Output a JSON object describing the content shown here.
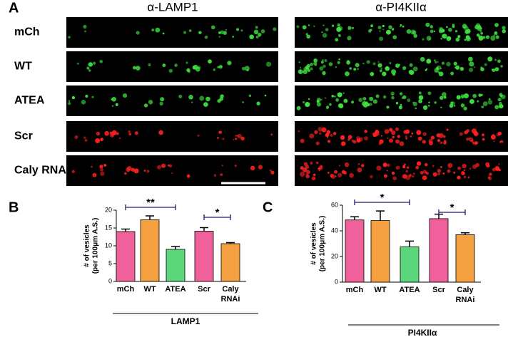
{
  "panel_labels": [
    "A",
    "B",
    "C"
  ],
  "column_titles": [
    "α-LAMP1",
    "α-PI4KIIα"
  ],
  "row_labels": [
    "mCh",
    "WT",
    "ATEA",
    "Scr",
    "Caly RNAi"
  ],
  "chart_data": [
    {
      "type": "bar",
      "y_label": [
        "# of vesicles",
        "(per 100μm A.S.)"
      ],
      "x_label": "LAMP1",
      "categories": [
        "mCh",
        "WT",
        "ATEA",
        "Scr",
        "Caly RNAi"
      ],
      "values": [
        14,
        17.3,
        9,
        14.1,
        10.6
      ],
      "errors": [
        0.7,
        1.1,
        0.8,
        1.0,
        0.3
      ],
      "colors": [
        "#f0609a",
        "#f5a040",
        "#5cd67a",
        "#f0609a",
        "#f5a040"
      ],
      "ylim": [
        0,
        20
      ],
      "yticks": [
        0,
        5,
        10,
        15,
        20
      ],
      "annotations": [
        {
          "text": "**",
          "between": [
            "mCh",
            "ATEA"
          ]
        },
        {
          "text": "*",
          "between": [
            "Scr",
            "Caly RNAi"
          ]
        }
      ]
    },
    {
      "type": "bar",
      "y_label": [
        "# of vesicles",
        "(per 100μm A.S.)"
      ],
      "x_label": "PI4KIIα",
      "categories": [
        "mCh",
        "WT",
        "ATEA",
        "Scr",
        "Caly RNAi"
      ],
      "values": [
        48.5,
        48,
        27.5,
        49.5,
        37
      ],
      "errors": [
        2.5,
        7.5,
        4.5,
        3.5,
        1.5
      ],
      "colors": [
        "#f0609a",
        "#f5a040",
        "#5cd67a",
        "#f0609a",
        "#f5a040"
      ],
      "ylim": [
        0,
        60
      ],
      "yticks": [
        0,
        20,
        40,
        60
      ],
      "annotations": [
        {
          "text": "*",
          "between": [
            "mCh",
            "ATEA"
          ]
        },
        {
          "text": "*",
          "between": [
            "Scr",
            "Caly RNAi"
          ]
        }
      ]
    }
  ]
}
